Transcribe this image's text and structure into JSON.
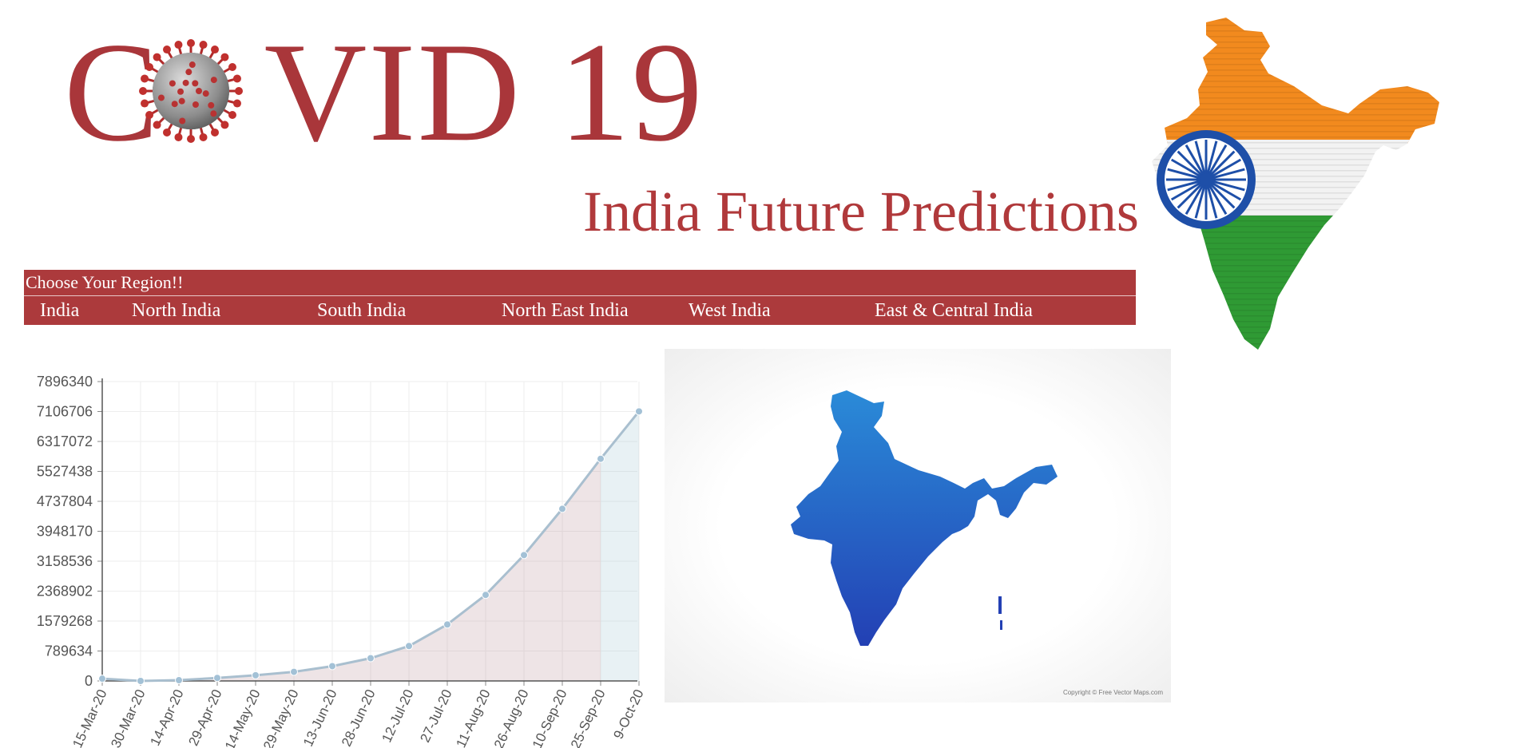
{
  "header": {
    "logo_text_prefix": "C",
    "logo_text_suffix": "VID 19",
    "title": "India Future Predictions"
  },
  "colors": {
    "brand_red": "#ac3a3c",
    "title_red": "#b0393b",
    "map_blue": "#2457c5",
    "line": "#a9bfcf",
    "fill_actual": "rgba(176,130,140,0.22)",
    "fill_predicted": "rgba(150,190,205,0.22)"
  },
  "region_nav": {
    "heading": "Choose Your Region!!",
    "tabs": [
      {
        "label": "India"
      },
      {
        "label": "North India"
      },
      {
        "label": "South India"
      },
      {
        "label": "North East India"
      },
      {
        "label": "West India"
      },
      {
        "label": "East & Central India"
      }
    ]
  },
  "map": {
    "copyright": "Copyright © Free Vector Maps.com"
  },
  "chart_data": {
    "type": "area",
    "title": "",
    "xlabel": "",
    "ylabel": "",
    "categories": [
      "15-Mar-20",
      "30-Mar-20",
      "14-Apr-20",
      "29-Apr-20",
      "14-May-20",
      "29-May-20",
      "13-Jun-20",
      "28-Jun-20",
      "12-Jul-20",
      "27-Jul-20",
      "11-Aug-20",
      "26-Aug-20",
      "10-Sep-20",
      "25-Sep-20",
      "9-Oct-20"
    ],
    "values": [
      60000,
      0,
      20000,
      80000,
      150000,
      240000,
      390000,
      600000,
      920000,
      1490000,
      2270000,
      3320000,
      4540000,
      5860000,
      7110000
    ],
    "predicted_from_index": 13,
    "y_ticks": [
      0,
      789634,
      1579268,
      2368902,
      3158536,
      3948170,
      4737804,
      5527438,
      6317072,
      7106706,
      7896340
    ],
    "ylim": [
      0,
      7896340
    ],
    "grid": true,
    "legend": "none"
  }
}
